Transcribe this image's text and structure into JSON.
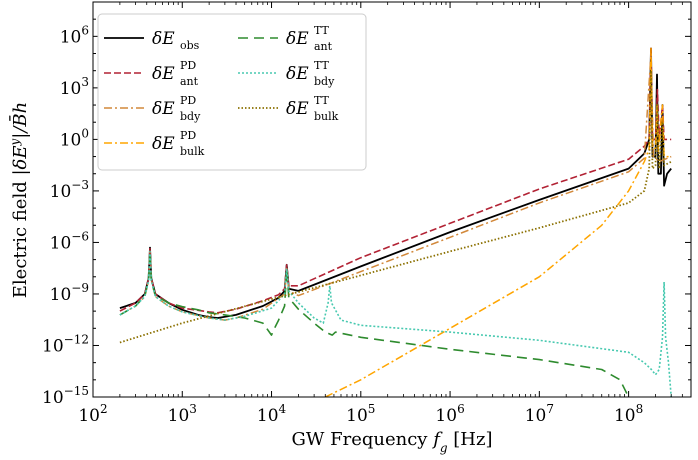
{
  "chart_data": {
    "type": "line",
    "xscale": "log",
    "yscale": "log",
    "xlim": [
      100,
      500000000
    ],
    "ylim": [
      1e-15,
      100000000.0
    ],
    "xlabel": "GW Frequency f_g [Hz]",
    "xlabel_parts": {
      "main": "GW Frequency ",
      "var": "f",
      "sub": "g",
      "unit": " [Hz]"
    },
    "ylabel": "Electric field |δE^y|/B̄h",
    "ylabel_parts": {
      "main": "Electric field ",
      "math": "|δE",
      "sup": "y",
      "rest": "|/B̄h"
    },
    "x_ticks": [
      {
        "base": "10",
        "exp": "2",
        "value": 100
      },
      {
        "base": "10",
        "exp": "3",
        "value": 1000
      },
      {
        "base": "10",
        "exp": "4",
        "value": 10000
      },
      {
        "base": "10",
        "exp": "5",
        "value": 100000
      },
      {
        "base": "10",
        "exp": "6",
        "value": 1000000
      },
      {
        "base": "10",
        "exp": "7",
        "value": 10000000
      },
      {
        "base": "10",
        "exp": "8",
        "value": 100000000
      }
    ],
    "y_ticks": [
      {
        "base": "10",
        "exp": "6",
        "value": 1000000.0
      },
      {
        "base": "10",
        "exp": "3",
        "value": 1000.0
      },
      {
        "base": "10",
        "exp": "0",
        "value": 1
      },
      {
        "base": "10",
        "exp": "−3",
        "value": 0.001
      },
      {
        "base": "10",
        "exp": "−6",
        "value": 1e-06
      },
      {
        "base": "10",
        "exp": "−9",
        "value": 1e-09
      },
      {
        "base": "10",
        "exp": "−12",
        "value": 1e-12
      },
      {
        "base": "10",
        "exp": "−15",
        "value": 1e-15
      }
    ],
    "legend_position": "top-left",
    "series": [
      {
        "name": "δE_obs",
        "symbol": "δE",
        "sub": "obs",
        "sup": "",
        "color": "#000000",
        "style": "solid",
        "points": [
          [
            200,
            1.5e-10
          ],
          [
            300,
            3e-10
          ],
          [
            380,
            1e-09
          ],
          [
            420,
            8e-09
          ],
          [
            435,
            5e-07
          ],
          [
            450,
            8e-09
          ],
          [
            500,
            1e-09
          ],
          [
            700,
            3e-10
          ],
          [
            1000,
            1.2e-10
          ],
          [
            1500,
            6e-11
          ],
          [
            2000,
            4.5e-11
          ],
          [
            2500,
            4e-11
          ],
          [
            4000,
            6e-11
          ],
          [
            8000,
            2e-10
          ],
          [
            12000,
            6e-10
          ],
          [
            14000,
            1.5e-09
          ],
          [
            14800,
            5e-08
          ],
          [
            15600,
            2e-09
          ],
          [
            20000,
            1.5e-09
          ],
          [
            100000,
            4e-08
          ],
          [
            1000000,
            4e-06
          ],
          [
            10000000,
            0.0003
          ],
          [
            100000000,
            0.02
          ],
          [
            150000000,
            0.15
          ],
          [
            170000000,
            1
          ],
          [
            178000000,
            200000.0
          ],
          [
            185000000,
            0.1
          ],
          [
            200000000,
            0.1
          ],
          [
            208000000,
            6000.0
          ],
          [
            215000000,
            0.01
          ],
          [
            230000000,
            0.01
          ],
          [
            240000000,
            100.0
          ],
          [
            250000000,
            0.002
          ],
          [
            270000000,
            0.01
          ],
          [
            300000000,
            0.02
          ]
        ]
      },
      {
        "name": "δE_ant^PD",
        "symbol": "δE",
        "sub": "ant",
        "sup": "PD",
        "color": "#b22234",
        "style": "dashed",
        "points": [
          [
            200,
            1e-10
          ],
          [
            300,
            3e-10
          ],
          [
            380,
            1e-09
          ],
          [
            420,
            8e-09
          ],
          [
            435,
            5e-07
          ],
          [
            450,
            8e-09
          ],
          [
            500,
            1e-09
          ],
          [
            700,
            3e-10
          ],
          [
            1000,
            1.5e-10
          ],
          [
            2000,
            9e-11
          ],
          [
            2500,
            8e-11
          ],
          [
            4000,
            1.3e-10
          ],
          [
            8000,
            4e-10
          ],
          [
            12000,
            9e-10
          ],
          [
            14000,
            2e-09
          ],
          [
            14800,
            5e-08
          ],
          [
            15600,
            3e-09
          ],
          [
            20000,
            3e-09
          ],
          [
            100000,
            1.3e-07
          ],
          [
            1000000,
            1.3e-05
          ],
          [
            10000000,
            0.0013
          ],
          [
            100000000,
            0.07
          ],
          [
            150000000,
            0.4
          ],
          [
            170000000,
            1
          ],
          [
            178000000,
            200000.0
          ],
          [
            185000000,
            1
          ],
          [
            200000000,
            1
          ],
          [
            210000000,
            800.0
          ],
          [
            220000000,
            1
          ],
          [
            240000000,
            100.0
          ],
          [
            250000000,
            1
          ],
          [
            300000000,
            1
          ]
        ]
      },
      {
        "name": "δE_bdy^PD",
        "symbol": "δE",
        "sub": "bdy",
        "sup": "PD",
        "color": "#d2883a",
        "style": "dashdot",
        "points": [
          [
            200,
            6e-11
          ],
          [
            300,
            2e-10
          ],
          [
            380,
            7e-10
          ],
          [
            420,
            6e-09
          ],
          [
            435,
            3e-07
          ],
          [
            450,
            6e-09
          ],
          [
            500,
            7e-10
          ],
          [
            700,
            2e-10
          ],
          [
            1000,
            9e-11
          ],
          [
            2000,
            4e-11
          ],
          [
            3000,
            3e-11
          ],
          [
            4000,
            4e-11
          ],
          [
            8000,
            1.3e-10
          ],
          [
            14000,
            1e-09
          ],
          [
            14800,
            3e-08
          ],
          [
            15600,
            1.5e-09
          ],
          [
            20000,
            8e-10
          ],
          [
            100000,
            2e-08
          ],
          [
            1000000,
            2e-06
          ],
          [
            10000000,
            0.0002
          ],
          [
            100000000,
            0.013
          ],
          [
            150000000,
            0.08
          ],
          [
            178000000,
            100000.0
          ],
          [
            190000000,
            0.1
          ],
          [
            220000000,
            0.05
          ],
          [
            300000000,
            0.1
          ]
        ]
      },
      {
        "name": "δE_bulk^PD",
        "symbol": "δE",
        "sub": "bulk",
        "sup": "PD",
        "color": "#ffa500",
        "style": "dashdot",
        "points": [
          [
            40000,
            1e-15
          ],
          [
            100000,
            1e-14
          ],
          [
            1000000,
            1e-11
          ],
          [
            10000000,
            1e-08
          ],
          [
            50000000,
            1e-05
          ],
          [
            100000000,
            0.001
          ],
          [
            150000000,
            0.05
          ],
          [
            170000000,
            0.3
          ],
          [
            178000000,
            200000.0
          ],
          [
            185000000,
            0.3
          ],
          [
            200000000,
            0.3
          ],
          [
            208000000,
            100.0
          ],
          [
            215000000,
            0.2
          ],
          [
            240000000,
            100.0
          ],
          [
            250000000,
            0.1
          ],
          [
            300000000,
            0.1
          ]
        ]
      },
      {
        "name": "δE_ant^TT",
        "symbol": "δE",
        "sub": "ant",
        "sup": "TT",
        "color": "#2e8b2e",
        "style": "longdash",
        "points": [
          [
            200,
            6e-11
          ],
          [
            300,
            2e-10
          ],
          [
            380,
            8e-10
          ],
          [
            420,
            6e-09
          ],
          [
            435,
            3e-07
          ],
          [
            450,
            6e-09
          ],
          [
            500,
            8e-10
          ],
          [
            700,
            3e-10
          ],
          [
            1000,
            1.8e-10
          ],
          [
            1500,
            1.2e-10
          ],
          [
            2000,
            8e-11
          ],
          [
            3000,
            6e-11
          ],
          [
            5000,
            4e-11
          ],
          [
            8000,
            2e-11
          ],
          [
            10000,
            4e-12
          ],
          [
            11000,
            1.2e-11
          ],
          [
            12000,
            3e-11
          ],
          [
            14000,
            2e-10
          ],
          [
            14800,
            3e-08
          ],
          [
            15600,
            6e-10
          ],
          [
            20000,
            1.3e-10
          ],
          [
            30000,
            2e-11
          ],
          [
            40000,
            6e-12
          ],
          [
            48000,
            4e-12
          ],
          [
            52000,
            6e-12
          ],
          [
            100000,
            3e-12
          ],
          [
            1000000,
            6e-13
          ],
          [
            10000000,
            1.5e-13
          ],
          [
            50000000,
            4e-14
          ],
          [
            80000000,
            1e-14
          ],
          [
            100000000,
            1e-15
          ]
        ]
      },
      {
        "name": "δE_bdy^TT",
        "symbol": "δE",
        "sub": "bdy",
        "sup": "TT",
        "color": "#48c9b0",
        "style": "dotted",
        "points": [
          [
            200,
            6e-11
          ],
          [
            300,
            2e-10
          ],
          [
            380,
            7e-10
          ],
          [
            420,
            6e-09
          ],
          [
            435,
            3e-07
          ],
          [
            450,
            6e-09
          ],
          [
            500,
            7e-10
          ],
          [
            700,
            2e-10
          ],
          [
            1000,
            9e-11
          ],
          [
            2000,
            4e-11
          ],
          [
            3000,
            3e-11
          ],
          [
            5000,
            5e-11
          ],
          [
            10000,
            1.5e-10
          ],
          [
            14000,
            1e-09
          ],
          [
            14800,
            3e-08
          ],
          [
            15600,
            1.5e-09
          ],
          [
            20000,
            3e-10
          ],
          [
            30000,
            4e-11
          ],
          [
            38000,
            2e-11
          ],
          [
            43000,
            3e-10
          ],
          [
            45000,
            3e-09
          ],
          [
            47000,
            3e-10
          ],
          [
            60000,
            3e-11
          ],
          [
            100000,
            1.5e-11
          ],
          [
            1000000,
            6e-12
          ],
          [
            10000000,
            2e-12
          ],
          [
            100000000,
            4e-13
          ],
          [
            150000000,
            1e-13
          ],
          [
            180000000,
            4e-14
          ],
          [
            200000000,
            2e-14
          ],
          [
            220000000,
            4e-14
          ],
          [
            240000000,
            3e-12
          ],
          [
            250000000,
            5e-09
          ],
          [
            260000000,
            3e-12
          ],
          [
            280000000,
            1e-13
          ],
          [
            300000000,
            1e-15
          ]
        ]
      },
      {
        "name": "δE_bulk^TT",
        "symbol": "δE",
        "sub": "bulk",
        "sup": "TT",
        "color": "#8b7000",
        "style": "densedot",
        "points": [
          [
            200,
            1.5e-12
          ],
          [
            1000,
            2e-11
          ],
          [
            10000,
            5e-10
          ],
          [
            100000,
            1.2e-08
          ],
          [
            1000000,
            3e-07
          ],
          [
            10000000,
            7e-06
          ],
          [
            100000000,
            0.0002
          ],
          [
            150000000,
            0.001
          ],
          [
            170000000,
            0.02
          ],
          [
            178000000,
            10000.0
          ],
          [
            185000000,
            0.02
          ],
          [
            200000000,
            0.03
          ],
          [
            210000000,
            100.0
          ],
          [
            220000000,
            0.02
          ],
          [
            240000000,
            10.0
          ],
          [
            250000000,
            0.03
          ],
          [
            300000000,
            0.05
          ]
        ]
      }
    ]
  }
}
